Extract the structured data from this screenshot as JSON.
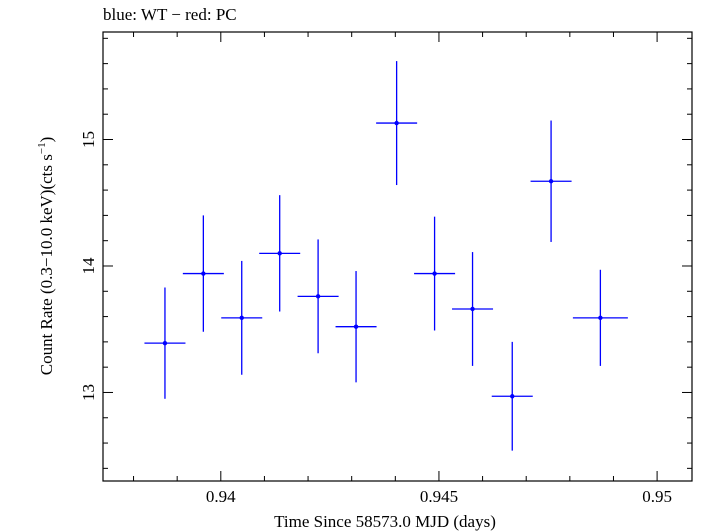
{
  "chart_data": {
    "type": "scatter",
    "title": "blue: WT − red: PC",
    "xlabel": "Time Since 58573.0 MJD (days)",
    "ylabel": "Count Rate (0.3−10.0 keV)(cts s",
    "ylabel_sup": "−1",
    "ylabel_end": ")",
    "xlim": [
      0.9373,
      0.9508
    ],
    "ylim": [
      12.3,
      15.85
    ],
    "x_ticks": [
      {
        "value": 0.94,
        "label": "0.94"
      },
      {
        "value": 0.945,
        "label": "0.945"
      },
      {
        "value": 0.95,
        "label": "0.95"
      }
    ],
    "y_ticks": [
      {
        "value": 13,
        "label": "13"
      },
      {
        "value": 14,
        "label": "14"
      },
      {
        "value": 15,
        "label": "15"
      }
    ],
    "series": [
      {
        "color": "#0000ff",
        "points": [
          {
            "x": 0.93872,
            "y": 13.39,
            "xerr": 0.00047,
            "yerr": 0.44
          },
          {
            "x": 0.9396,
            "y": 13.94,
            "xerr": 0.00047,
            "yerr": 0.46
          },
          {
            "x": 0.94048,
            "y": 13.59,
            "xerr": 0.00047,
            "yerr": 0.45
          },
          {
            "x": 0.94135,
            "y": 14.1,
            "xerr": 0.00047,
            "yerr": 0.46
          },
          {
            "x": 0.94223,
            "y": 13.76,
            "xerr": 0.00047,
            "yerr": 0.45
          },
          {
            "x": 0.9431,
            "y": 13.52,
            "xerr": 0.00047,
            "yerr": 0.44
          },
          {
            "x": 0.94403,
            "y": 15.13,
            "xerr": 0.00047,
            "yerr": 0.49
          },
          {
            "x": 0.9449,
            "y": 13.94,
            "xerr": 0.00047,
            "yerr": 0.45
          },
          {
            "x": 0.94577,
            "y": 13.66,
            "xerr": 0.00047,
            "yerr": 0.45
          },
          {
            "x": 0.94668,
            "y": 12.97,
            "xerr": 0.00047,
            "yerr": 0.43
          },
          {
            "x": 0.94757,
            "y": 14.67,
            "xerr": 0.00047,
            "yerr": 0.48
          },
          {
            "x": 0.9487,
            "y": 13.59,
            "xerr": 0.00063,
            "yerr": 0.38
          }
        ]
      }
    ]
  }
}
